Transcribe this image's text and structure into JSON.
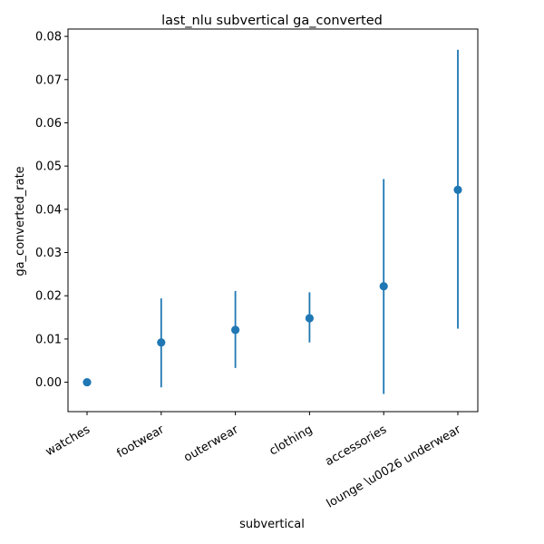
{
  "chart_data": {
    "type": "scatter",
    "title": "last_nlu subvertical ga_converted",
    "xlabel": "subvertical",
    "ylabel": "ga_converted_rate",
    "categories": [
      "watches",
      "footwear",
      "outerwear",
      "clothing",
      "accessories",
      "lounge \\u0026 underwear"
    ],
    "values": [
      0.0,
      0.0092,
      0.0121,
      0.0148,
      0.0222,
      0.0445
    ],
    "error_low": [
      0.0,
      -0.0012,
      0.0033,
      0.0092,
      -0.0027,
      0.0124
    ],
    "error_high": [
      0.0,
      0.0194,
      0.0211,
      0.0208,
      0.047,
      0.0769
    ],
    "ylim": [
      -0.0068,
      0.0817
    ],
    "yticks": [
      0.0,
      0.01,
      0.02,
      0.03,
      0.04,
      0.05,
      0.06,
      0.07,
      0.08
    ],
    "ytick_labels": [
      "0.00",
      "0.01",
      "0.02",
      "0.03",
      "0.04",
      "0.05",
      "0.06",
      "0.07",
      "0.08"
    ],
    "xtick_rotation": 30,
    "grid": false,
    "color": "#1f77b4"
  }
}
